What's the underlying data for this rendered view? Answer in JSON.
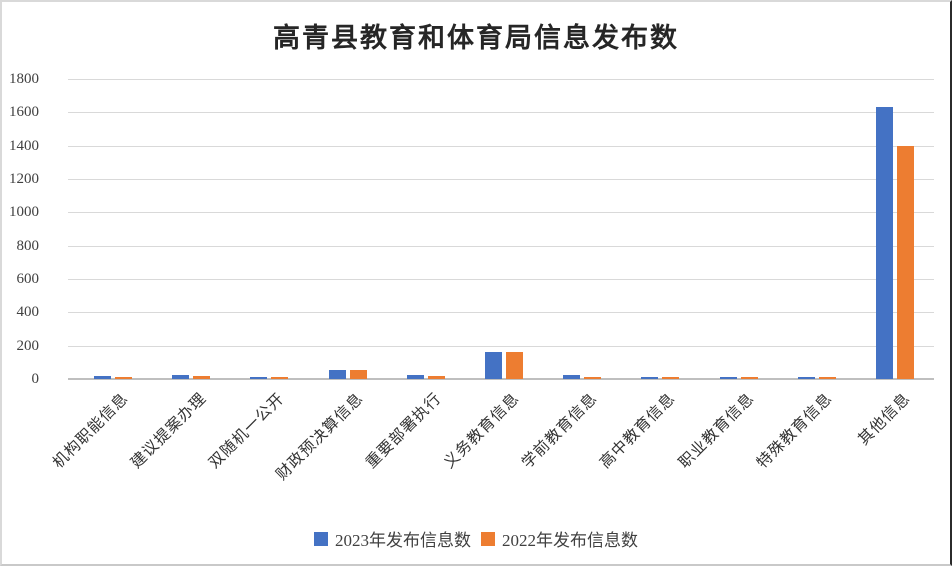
{
  "window": {
    "background": "#ffffff",
    "border_color": "#d9d9d9"
  },
  "chart_data": {
    "type": "bar",
    "title": "高青县教育和体育局信息发布数",
    "categories": [
      "机构职能信息",
      "建议提案办理",
      "双随机一公开",
      "财政预决算信息",
      "重要部署执行",
      "义务教育信息",
      "学前教育信息",
      "高中教育信息",
      "职业教育信息",
      "特殊教育信息",
      "其他信息"
    ],
    "series": [
      {
        "name": "2023年发布信息数",
        "color": "#4472C4",
        "values": [
          20,
          22,
          12,
          55,
          22,
          165,
          25,
          13,
          12,
          12,
          1630
        ]
      },
      {
        "name": "2022年发布信息数",
        "color": "#ED7D31",
        "values": [
          13,
          20,
          10,
          52,
          20,
          165,
          13,
          12,
          11,
          11,
          1400
        ]
      }
    ],
    "xlabel": "",
    "ylabel": "",
    "ylim": [
      0,
      1800
    ],
    "ytick_step": 200,
    "yticks": [
      0,
      200,
      400,
      600,
      800,
      1000,
      1200,
      1400,
      1600,
      1800
    ],
    "grid": true,
    "gridline_color": "#D9D9D9",
    "axis_line_color": "#BFBFBF",
    "tick_label_color": "#404040",
    "x_label_rotation_deg": 45,
    "legend_position": "bottom"
  }
}
